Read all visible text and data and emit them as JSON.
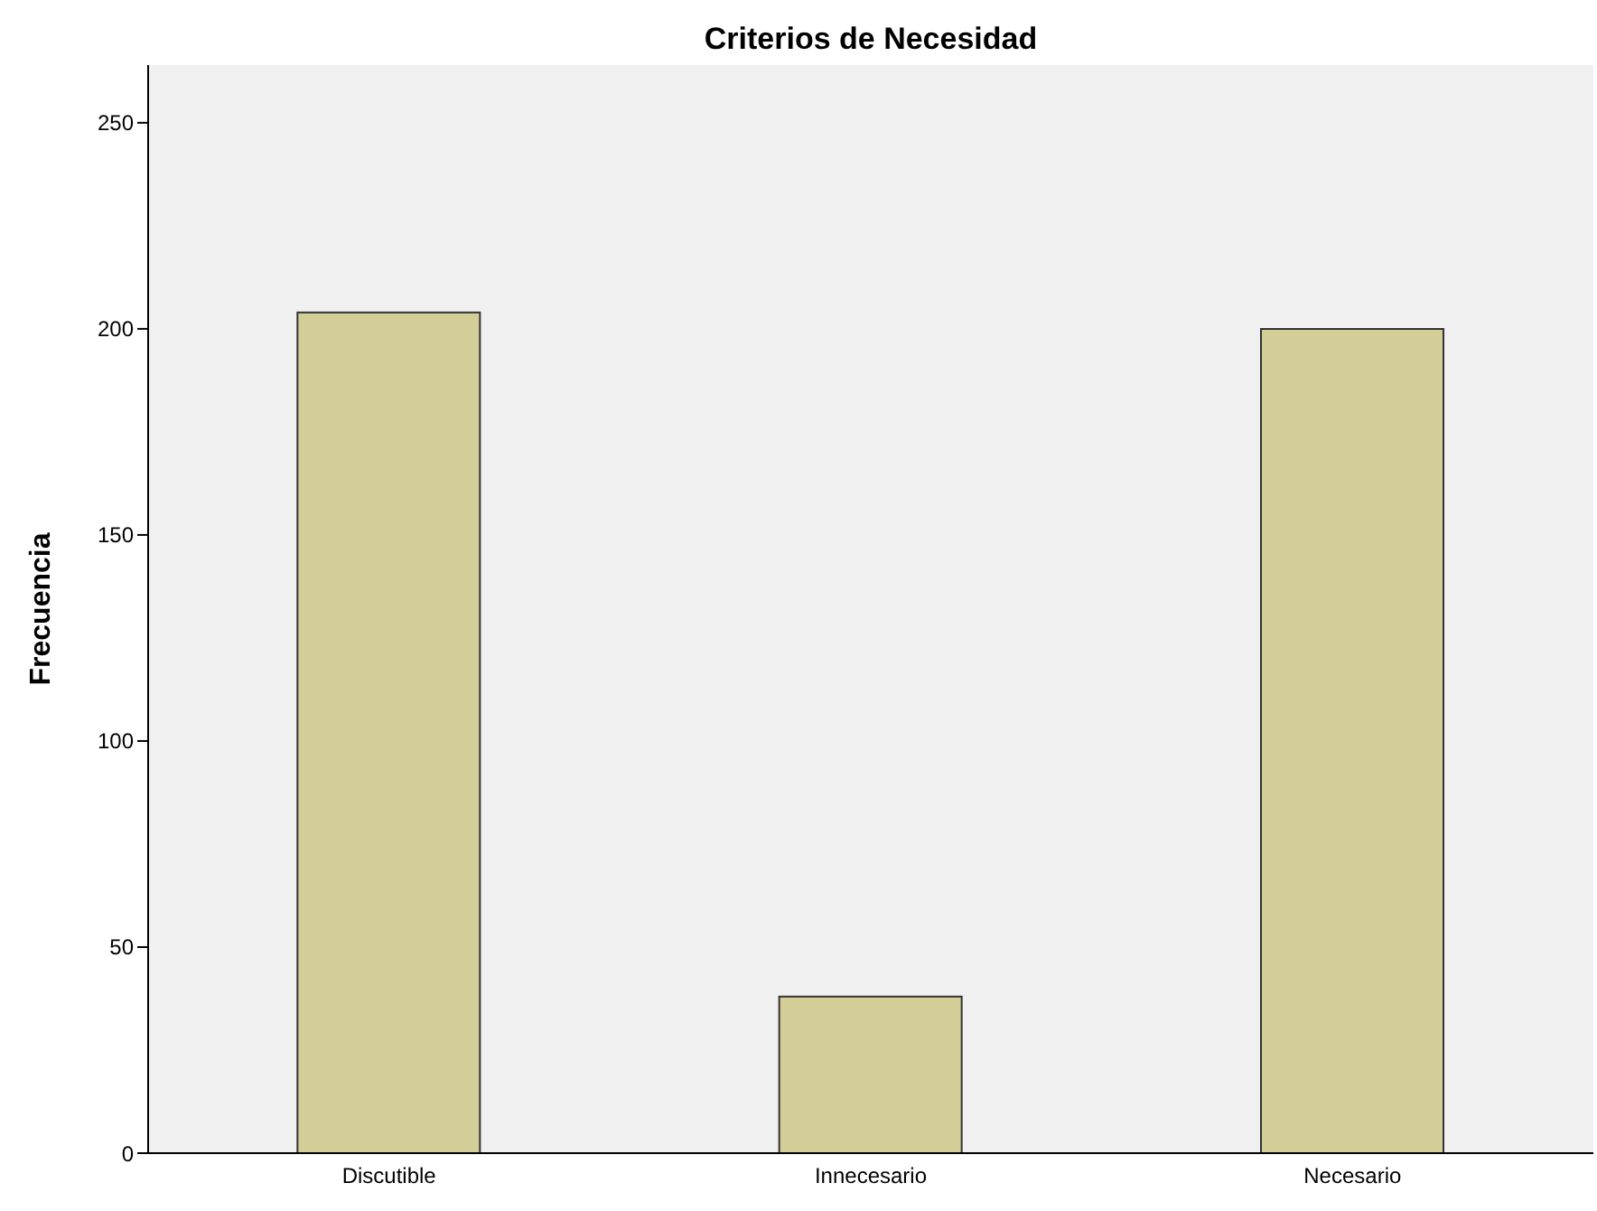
{
  "chart_data": {
    "type": "bar",
    "title": "Criterios de Necesidad",
    "ylabel": "Frecuencia",
    "categories": [
      "Discutible",
      "Innecesario",
      "Necesario"
    ],
    "values": [
      204,
      38,
      200
    ],
    "color": "#d3ce97",
    "ylim": [
      0,
      264
    ],
    "yticks": [
      0,
      50,
      100,
      150,
      200,
      250
    ],
    "grid": false
  }
}
